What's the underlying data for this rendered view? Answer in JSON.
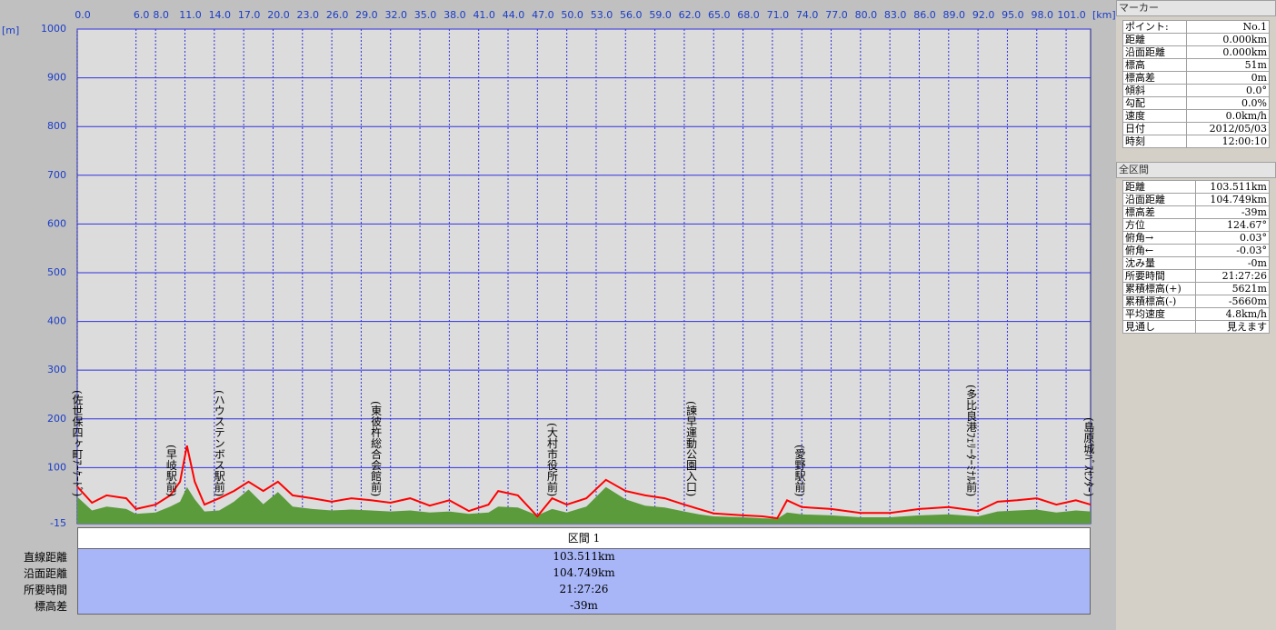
{
  "chart_data": {
    "type": "line",
    "x_label": "[km]",
    "y_label": "[m]",
    "x": [
      0,
      1.5,
      3,
      5,
      6,
      8,
      9.5,
      10.5,
      11.2,
      12,
      13,
      14.5,
      16,
      17.5,
      19,
      20.5,
      22,
      24,
      26,
      28,
      30,
      32,
      34,
      36,
      38,
      40,
      42,
      43,
      45,
      47,
      48.5,
      50,
      52,
      54,
      56,
      58,
      60,
      62,
      63.5,
      65,
      68,
      70,
      71.5,
      72.5,
      74,
      77,
      80,
      83,
      86,
      89,
      92,
      94,
      96,
      98,
      100,
      102,
      103.5
    ],
    "series": [
      {
        "color": "#5b9b3c",
        "fill": true,
        "values": [
          40,
          12,
          20,
          15,
          5,
          8,
          20,
          30,
          60,
          35,
          10,
          12,
          30,
          55,
          25,
          50,
          20,
          15,
          12,
          14,
          12,
          10,
          12,
          8,
          10,
          5,
          8,
          20,
          18,
          2,
          15,
          8,
          20,
          60,
          35,
          22,
          18,
          10,
          4,
          0,
          -2,
          -4,
          -5,
          8,
          4,
          2,
          -2,
          -2,
          2,
          4,
          0,
          10,
          12,
          14,
          8,
          12,
          10
        ]
      },
      {
        "color": "#ff0000",
        "values": [
          61,
          28,
          43,
          37,
          15,
          24,
          43,
          71,
          145,
          71,
          24,
          37,
          52,
          71,
          52,
          71,
          43,
          37,
          30,
          37,
          33,
          28,
          37,
          22,
          33,
          11,
          24,
          52,
          43,
          0,
          37,
          24,
          37,
          75,
          52,
          43,
          37,
          24,
          15,
          6,
          2,
          0,
          -4,
          33,
          19,
          15,
          7,
          7,
          15,
          19,
          11,
          30,
          33,
          37,
          24,
          33,
          24
        ]
      }
    ],
    "annotations": [
      {
        "text": "(佐世保四ヶ町ｱｰｹｰﾄﾞ)",
        "x": 0
      },
      {
        "text": "(早岐駅前)",
        "x": 9.6
      },
      {
        "text": "(ハウステンボス駅前)",
        "x": 14.5
      },
      {
        "text": "(東彼杵総合会館前)",
        "x": 30.5
      },
      {
        "text": "(大村市役所前)",
        "x": 48.5
      },
      {
        "text": "(諫早運動公園入口)",
        "x": 62.7
      },
      {
        "text": "(愛野駅前)",
        "x": 73.8
      },
      {
        "text": "(多比良港ﾌｪﾘｰﾀｰﾐﾅﾙ前)",
        "x": 91.3
      },
      {
        "text": "(島原城ﾊﾞｽｾﾝﾀｰ)",
        "x": 103.3
      }
    ],
    "xlim": [
      0,
      103.5
    ],
    "xticks": [
      {
        "value": 0,
        "label": "0.0"
      },
      {
        "value": 6,
        "label": "6.0"
      },
      {
        "value": 8,
        "label": "8.0"
      },
      {
        "value": 11,
        "label": "11.0"
      },
      {
        "value": 14,
        "label": "14.0"
      },
      {
        "value": 17,
        "label": "17.0"
      },
      {
        "value": 20,
        "label": "20.0"
      },
      {
        "value": 23,
        "label": "23.0"
      },
      {
        "value": 26,
        "label": "26.0"
      },
      {
        "value": 29,
        "label": "29.0"
      },
      {
        "value": 32,
        "label": "32.0"
      },
      {
        "value": 35,
        "label": "35.0"
      },
      {
        "value": 38,
        "label": "38.0"
      },
      {
        "value": 41,
        "label": "41.0"
      },
      {
        "value": 44,
        "label": "44.0"
      },
      {
        "value": 47,
        "label": "47.0"
      },
      {
        "value": 50,
        "label": "50.0"
      },
      {
        "value": 53,
        "label": "53.0"
      },
      {
        "value": 56,
        "label": "56.0"
      },
      {
        "value": 59,
        "label": "59.0"
      },
      {
        "value": 62,
        "label": "62.0"
      },
      {
        "value": 65,
        "label": "65.0"
      },
      {
        "value": 68,
        "label": "68.0"
      },
      {
        "value": 71,
        "label": "71.0"
      },
      {
        "value": 74,
        "label": "74.0"
      },
      {
        "value": 77,
        "label": "77.0"
      },
      {
        "value": 80,
        "label": "80.0"
      },
      {
        "value": 83,
        "label": "83.0"
      },
      {
        "value": 86,
        "label": "86.0"
      },
      {
        "value": 89,
        "label": "89.0"
      },
      {
        "value": 92,
        "label": "92.0"
      },
      {
        "value": 95,
        "label": "95.0"
      },
      {
        "value": 98,
        "label": "98.0"
      },
      {
        "value": 101,
        "label": "101.0"
      }
    ],
    "ylim": [
      -15,
      1000
    ],
    "yticks": [
      -15,
      100,
      200,
      300,
      400,
      500,
      600,
      700,
      800,
      900,
      1000
    ],
    "grid": true
  },
  "segment_table": {
    "header": "区間 1",
    "rows": [
      [
        "直線距離",
        "103.511km"
      ],
      [
        "沿面距離",
        "104.749km"
      ],
      [
        "所要時間",
        "21:27:26"
      ],
      [
        "標高差",
        "-39m"
      ]
    ]
  },
  "marker_panel": {
    "title": "マーカー",
    "rows": [
      [
        "ポイント:",
        "No.1"
      ],
      [
        "距離",
        "0.000km"
      ],
      [
        "沿面距離",
        "0.000km"
      ],
      [
        "標高",
        "51m"
      ],
      [
        "標高差",
        "0m"
      ],
      [
        "傾斜",
        "0.0°"
      ],
      [
        "勾配",
        "0.0%"
      ],
      [
        "速度",
        "0.0km/h"
      ],
      [
        "日付",
        "2012/05/03"
      ],
      [
        "時刻",
        "12:00:10"
      ]
    ]
  },
  "total_panel": {
    "title": "全区間",
    "rows": [
      [
        "距離",
        "103.511km"
      ],
      [
        "沿面距離",
        "104.749km"
      ],
      [
        "標高差",
        "-39m"
      ],
      [
        "方位",
        "124.67°"
      ],
      [
        "俯角→",
        "0.03°"
      ],
      [
        "俯角←",
        "-0.03°"
      ],
      [
        "沈み量",
        "-0m"
      ],
      [
        "所要時間",
        "21:27:26"
      ],
      [
        "累積標高(+)",
        "5621m"
      ],
      [
        "累積標高(-)",
        "-5660m"
      ],
      [
        "平均速度",
        "4.8km/h"
      ],
      [
        "見通し",
        "見えます"
      ]
    ]
  }
}
